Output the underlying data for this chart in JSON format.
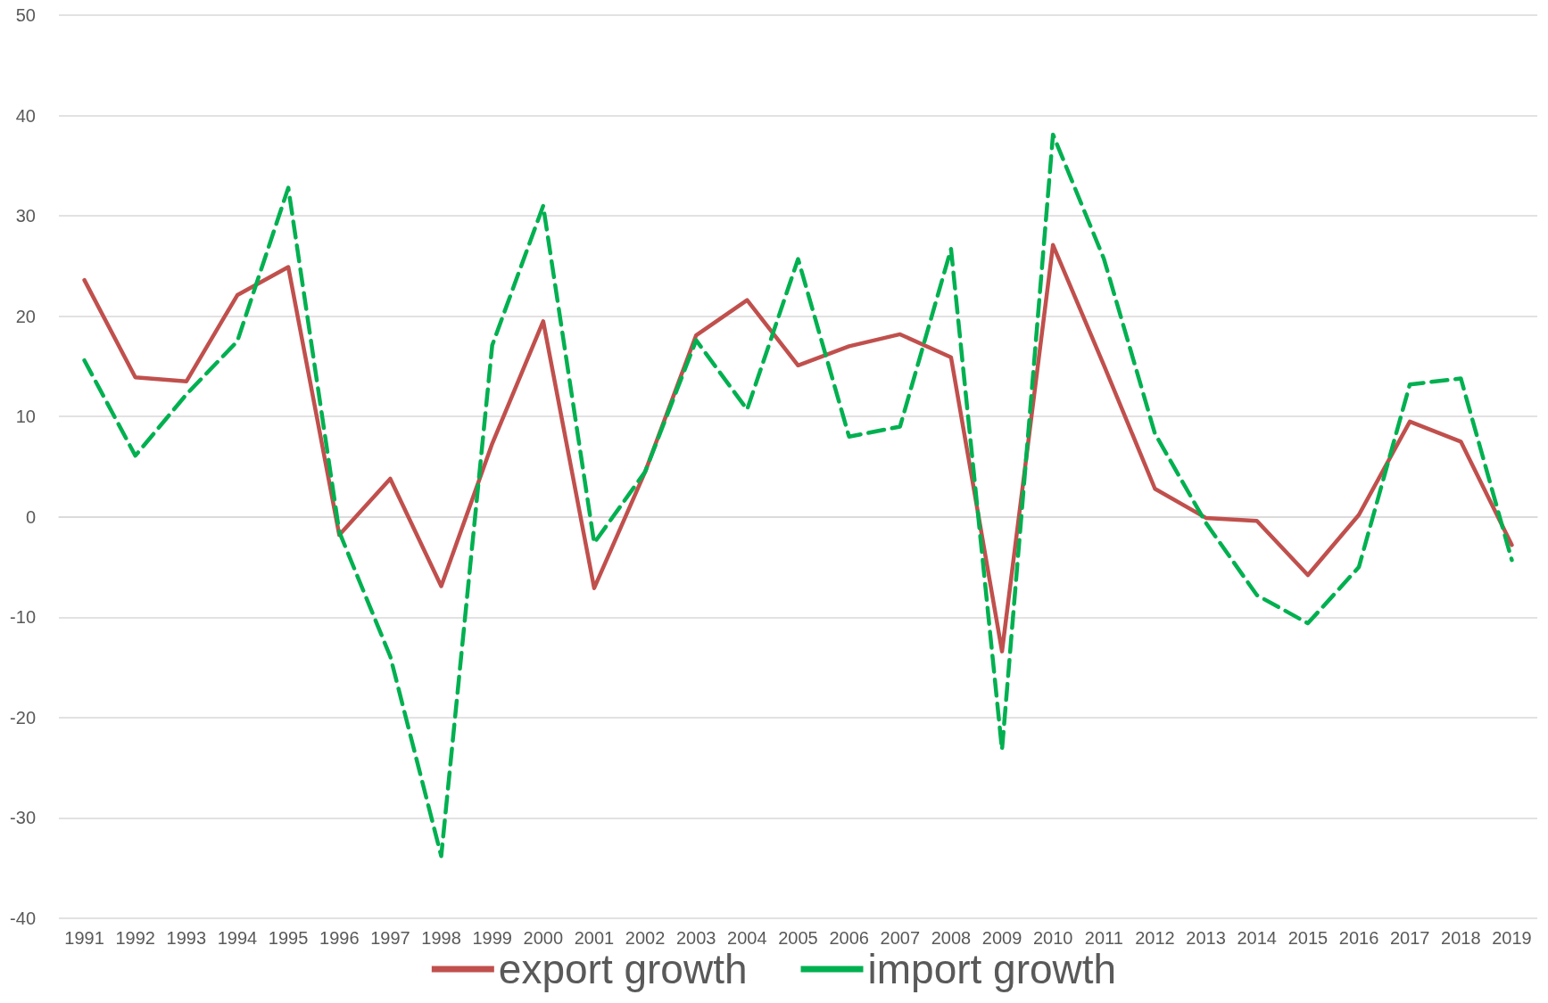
{
  "chart_data": {
    "type": "line",
    "categories": [
      "1991",
      "1992",
      "1993",
      "1994",
      "1995",
      "1996",
      "1997",
      "1998",
      "1999",
      "2000",
      "2001",
      "2002",
      "2003",
      "2004",
      "2005",
      "2006",
      "2007",
      "2008",
      "2009",
      "2010",
      "2011",
      "2012",
      "2013",
      "2014",
      "2015",
      "2016",
      "2017",
      "2018",
      "2019"
    ],
    "series": [
      {
        "name": "export growth",
        "color": "#c0504d",
        "line_style": "solid",
        "values": [
          23.6,
          13.9,
          13.5,
          22.1,
          24.9,
          -1.8,
          3.8,
          -6.9,
          7.3,
          19.5,
          -7.1,
          4.5,
          18.1,
          21.6,
          15.1,
          17.0,
          18.2,
          15.9,
          -13.4,
          27.1,
          15.1,
          2.8,
          -0.1,
          -0.4,
          -5.8,
          0.2,
          9.5,
          7.5,
          -2.8
        ]
      },
      {
        "name": "import growth",
        "color": "#00b050",
        "line_style": "dashed",
        "values": [
          15.6,
          6.1,
          12.2,
          17.5,
          32.8,
          -1.5,
          -13.9,
          -33.8,
          17.1,
          31.0,
          -2.6,
          4.5,
          17.6,
          10.7,
          25.7,
          8.0,
          9.0,
          26.7,
          -23.2,
          38.1,
          25.7,
          8.3,
          -0.6,
          -7.8,
          -10.6,
          -5.0,
          13.2,
          13.8,
          -4.3
        ]
      }
    ],
    "ylim": [
      -40,
      50
    ],
    "yticks": [
      -40,
      -30,
      -20,
      -10,
      0,
      10,
      20,
      30,
      40,
      50
    ],
    "grid": "y",
    "legend": "bottom",
    "marker": "none"
  }
}
